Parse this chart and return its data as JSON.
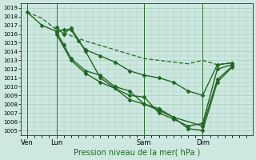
{
  "xlabel": "Pression niveau de la mer( hPa )",
  "bg_color": "#cce8e0",
  "grid_color": "#aaccbb",
  "line_color": "#226622",
  "ylim": [
    1004.5,
    1019.5
  ],
  "yticks": [
    1005,
    1006,
    1007,
    1008,
    1009,
    1010,
    1011,
    1012,
    1013,
    1014,
    1015,
    1016,
    1017,
    1018,
    1019
  ],
  "xtick_labels": [
    "Ven",
    "Lun",
    "Sam",
    "Dim"
  ],
  "xtick_positions": [
    0,
    24,
    96,
    144
  ],
  "xlim": [
    -5,
    185
  ],
  "vline_positions": [
    0,
    24,
    96,
    144
  ],
  "lines": [
    {
      "x": [
        0,
        12,
        24,
        36,
        48,
        60,
        72,
        84,
        96,
        108,
        120,
        132,
        144,
        156,
        168
      ],
      "y": [
        1018.5,
        1017.8,
        1016.5,
        1015.8,
        1015.2,
        1014.7,
        1014.2,
        1013.7,
        1013.2,
        1013.0,
        1012.8,
        1012.6,
        1013.0,
        1012.5,
        1012.7
      ],
      "marker": null,
      "lw": 0.9,
      "dashes": [
        4,
        2
      ]
    },
    {
      "x": [
        0,
        12,
        24,
        30,
        36,
        42,
        48,
        60,
        72,
        84,
        96,
        108,
        120,
        132,
        144,
        156,
        168
      ],
      "y": [
        1018.5,
        1017.0,
        1016.3,
        1016.5,
        1016.5,
        1015.2,
        1014.2,
        1013.5,
        1012.8,
        1011.8,
        1011.3,
        1011.0,
        1010.5,
        1009.5,
        1009.0,
        1012.5,
        1012.7
      ],
      "marker": "D",
      "ms": 2.5,
      "lw": 1.0,
      "dashes": null
    },
    {
      "x": [
        24,
        30,
        36,
        48,
        60,
        72,
        84,
        96,
        108,
        120,
        144,
        156,
        168
      ],
      "y": [
        1016.8,
        1016.0,
        1016.7,
        1014.0,
        1011.0,
        1009.8,
        1008.5,
        1008.0,
        1007.3,
        1006.5,
        1005.5,
        1010.8,
        1012.3
      ],
      "marker": "D",
      "ms": 2.5,
      "lw": 1.0,
      "dashes": null
    },
    {
      "x": [
        24,
        30,
        36,
        48,
        60,
        72,
        84,
        96,
        108,
        120,
        132,
        144,
        156,
        168
      ],
      "y": [
        1016.2,
        1014.8,
        1013.2,
        1011.8,
        1011.3,
        1010.0,
        1009.5,
        1008.0,
        1007.5,
        1006.5,
        1005.2,
        1005.0,
        1010.5,
        1012.2
      ],
      "marker": "D",
      "ms": 2.5,
      "lw": 1.0,
      "dashes": null
    },
    {
      "x": [
        24,
        36,
        48,
        60,
        72,
        84,
        96,
        108,
        120,
        132,
        144,
        156,
        168
      ],
      "y": [
        1016.0,
        1013.0,
        1011.5,
        1010.5,
        1009.8,
        1009.0,
        1008.8,
        1007.0,
        1006.3,
        1005.5,
        1005.8,
        1012.0,
        1012.5
      ],
      "marker": "D",
      "ms": 2.5,
      "lw": 1.0,
      "dashes": null
    }
  ],
  "figsize": [
    3.2,
    2.0
  ],
  "dpi": 100
}
